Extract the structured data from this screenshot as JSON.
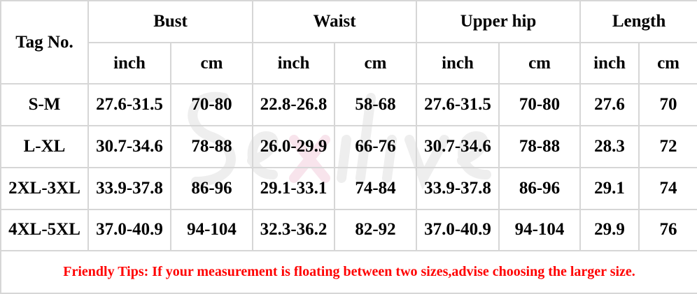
{
  "watermark": "Sexilive",
  "header": {
    "tag": "Tag No.",
    "groups": [
      "Bust",
      "Waist",
      "Upper hip",
      "Length"
    ],
    "units": [
      "inch",
      "cm",
      "inch",
      "cm",
      "inch",
      "cm",
      "inch",
      "cm"
    ]
  },
  "rows": [
    [
      "S-M",
      "27.6-31.5",
      "70-80",
      "22.8-26.8",
      "58-68",
      "27.6-31.5",
      "70-80",
      "27.6",
      "70"
    ],
    [
      "L-XL",
      "30.7-34.6",
      "78-88",
      "26.0-29.9",
      "66-76",
      "30.7-34.6",
      "78-88",
      "28.3",
      "72"
    ],
    [
      "2XL-3XL",
      "33.9-37.8",
      "86-96",
      "29.1-33.1",
      "74-84",
      "33.9-37.8",
      "86-96",
      "29.1",
      "74"
    ],
    [
      "4XL-5XL",
      "37.0-40.9",
      "94-104",
      "32.3-36.2",
      "82-92",
      "37.0-40.9",
      "94-104",
      "29.9",
      "76"
    ]
  ],
  "tip": "Friendly Tips: If your measurement is floating between two sizes,advise choosing the larger size.",
  "colors": {
    "tip": "#ff0000",
    "grid": "#d6d6d6"
  }
}
